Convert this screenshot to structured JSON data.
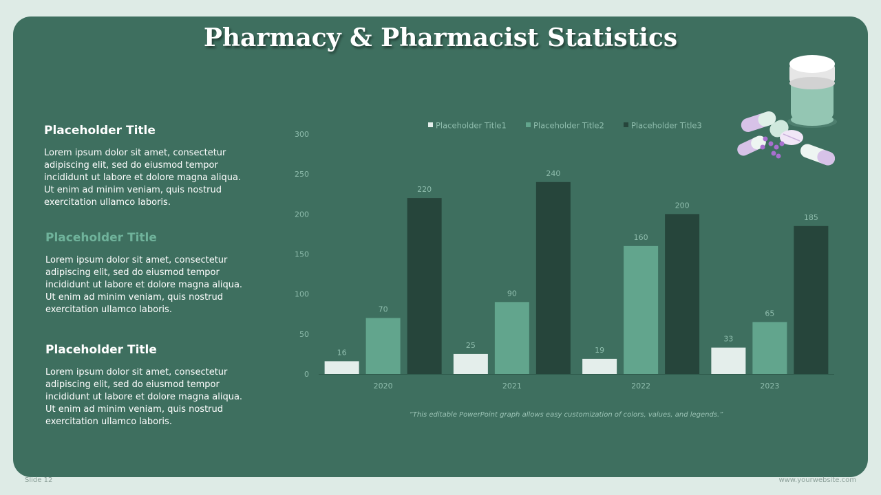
{
  "slide": {
    "title": "Pharmacy & Pharmacist Statistics",
    "footer_left": "Slide 12",
    "footer_right": "www.yourwebsite.com",
    "note": "“This editable PowerPoint graph allows easy customization of colors, values, and legends.”"
  },
  "blocks": [
    {
      "title": "Placeholder Title",
      "body": "Lorem ipsum dolor sit amet, consectetur adipiscing elit, sed do eiusmod tempor incididunt ut labore et dolore magna aliqua. Ut enim ad minim veniam, quis nostrud exercitation ullamco laboris."
    },
    {
      "title": "Placeholder Title",
      "body": "Lorem ipsum dolor sit amet, consectetur adipiscing elit, sed do eiusmod tempor incididunt ut labore et dolore magna aliqua. Ut enim ad minim veniam, quis nostrud exercitation ullamco laboris."
    },
    {
      "title": "Placeholder Title",
      "body": "Lorem ipsum dolor sit amet, consectetur adipiscing elit, sed do eiusmod tempor incididunt ut labore et dolore magna aliqua. Ut enim ad minim veniam, quis nostrud exercitation ullamco laboris."
    }
  ],
  "colors": {
    "background": "#deebe6",
    "card": "#3e6f5f",
    "accent_title": "#6fb39b"
  },
  "decor_icon": "pill-bottle-and-capsules-icon",
  "chart_data": {
    "type": "bar",
    "categories": [
      "2020",
      "2021",
      "2022",
      "2023"
    ],
    "series": [
      {
        "name": "Placeholder Title1",
        "values": [
          16,
          25,
          19,
          33
        ],
        "color": "#e4eeeb"
      },
      {
        "name": "Placeholder Title2",
        "values": [
          70,
          90,
          160,
          65
        ],
        "color": "#62a58d"
      },
      {
        "name": "Placeholder Title3",
        "values": [
          220,
          240,
          200,
          185
        ],
        "color": "#26453b"
      }
    ],
    "ylim": [
      0,
      300
    ],
    "yticks": [
      0,
      50,
      100,
      150,
      200,
      250,
      300
    ],
    "data_labels": true,
    "grid": false,
    "legend": "top"
  }
}
